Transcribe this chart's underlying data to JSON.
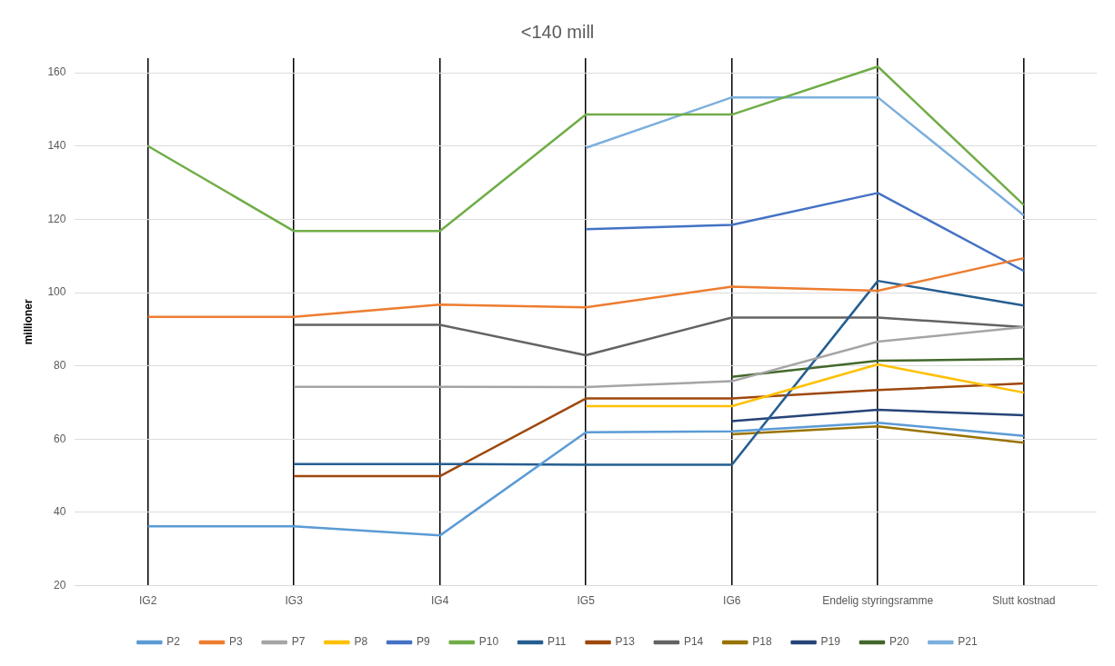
{
  "chart_data": {
    "type": "line",
    "title": "<140 mill",
    "ylabel": "millioner",
    "categories": [
      "IG2",
      "IG3",
      "IG4",
      "IG5",
      "IG6",
      "Endelig styringsramme",
      "Slutt kostnad"
    ],
    "ylim": [
      20,
      164
    ],
    "yticks": [
      20,
      40,
      60,
      80,
      100,
      120,
      140,
      160
    ],
    "grid": true,
    "legend": "bottom",
    "marker": "none",
    "line_style": "solid",
    "series": [
      {
        "name": "P2",
        "color": "#5b9bd5",
        "values": [
          36.2,
          36.2,
          33.7,
          61.9,
          62.1,
          64.5,
          60.9
        ]
      },
      {
        "name": "P3",
        "color": "#ed7d31",
        "values": [
          93.4,
          93.4,
          96.7,
          96.0,
          101.6,
          100.5,
          109.4
        ]
      },
      {
        "name": "P7",
        "color": "#a5a5a5",
        "values": [
          null,
          74.3,
          74.3,
          74.2,
          75.8,
          86.6,
          90.6
        ]
      },
      {
        "name": "P8",
        "color": "#ffc000",
        "values": [
          null,
          null,
          null,
          69.0,
          69.0,
          80.4,
          72.7
        ]
      },
      {
        "name": "P9",
        "color": "#4472c4",
        "values": [
          null,
          null,
          null,
          117.3,
          118.5,
          127.2,
          105.9
        ]
      },
      {
        "name": "P10",
        "color": "#70ad47",
        "values": [
          140.0,
          116.8,
          116.8,
          148.6,
          148.6,
          161.7,
          123.9
        ]
      },
      {
        "name": "P11",
        "color": "#255e91",
        "values": [
          null,
          53.2,
          53.2,
          53.0,
          53.0,
          103.2,
          96.5
        ]
      },
      {
        "name": "P13",
        "color": "#9e480e",
        "values": [
          null,
          49.9,
          49.9,
          71.1,
          71.1,
          73.4,
          75.2
        ]
      },
      {
        "name": "P14",
        "color": "#636363",
        "values": [
          null,
          91.2,
          91.2,
          82.9,
          93.2,
          93.2,
          90.6
        ]
      },
      {
        "name": "P18",
        "color": "#997300",
        "values": [
          null,
          null,
          null,
          null,
          61.3,
          63.5,
          59.0
        ]
      },
      {
        "name": "P19",
        "color": "#264478",
        "values": [
          null,
          null,
          null,
          null,
          64.9,
          68.0,
          66.5
        ]
      },
      {
        "name": "P20",
        "color": "#43682b",
        "values": [
          null,
          null,
          null,
          null,
          77.0,
          81.4,
          81.9
        ]
      },
      {
        "name": "P21",
        "color": "#7cafdd",
        "values": [
          null,
          null,
          null,
          139.5,
          153.3,
          153.3,
          121.1
        ]
      }
    ]
  }
}
